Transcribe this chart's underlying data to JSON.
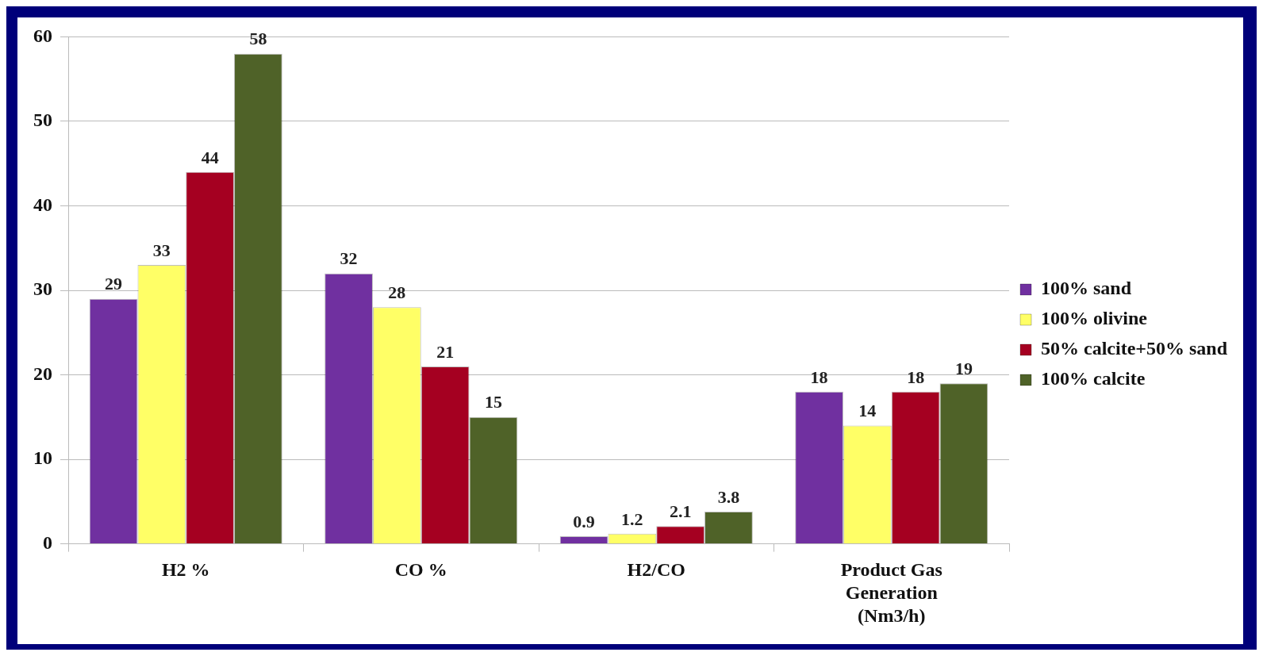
{
  "chart_data": {
    "type": "bar",
    "categories": [
      "H2 %",
      "CO %",
      "H2/CO",
      "Product Gas\nGeneration\n(Nm3/h)"
    ],
    "series": [
      {
        "name": "100% sand",
        "color": "#7030a0",
        "values": [
          29,
          32,
          0.9,
          18
        ]
      },
      {
        "name": "100% olivine",
        "color": "#ffff66",
        "values": [
          33,
          28,
          1.2,
          14
        ]
      },
      {
        "name": "50% calcite+50% sand",
        "color": "#a50021",
        "values": [
          44,
          21,
          2.1,
          18
        ]
      },
      {
        "name": "100% calcite",
        "color": "#4f6228",
        "values": [
          58,
          15,
          3.8,
          19
        ]
      }
    ],
    "ylim": [
      0,
      60
    ],
    "yticks": [
      0,
      10,
      20,
      30,
      40,
      50,
      60
    ],
    "grid": "y",
    "legend": "right",
    "data_labels": true
  }
}
